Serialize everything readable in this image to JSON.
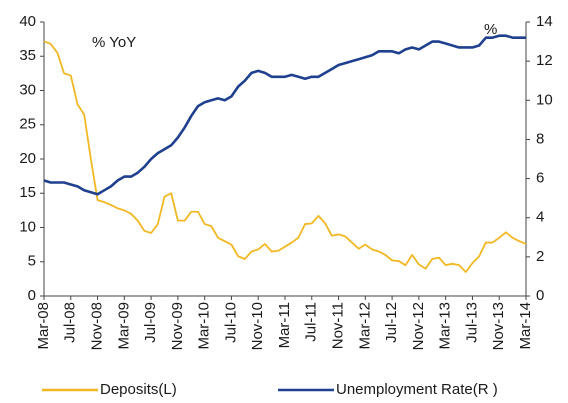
{
  "chart_data": {
    "type": "line",
    "annotations": [
      "% YoY",
      "%"
    ],
    "categories": [
      "Mar-08",
      null,
      null,
      null,
      "Jul-08",
      null,
      null,
      null,
      "Nov-08",
      null,
      null,
      null,
      "Mar-09",
      null,
      null,
      null,
      "Jul-09",
      null,
      null,
      null,
      "Nov-09",
      null,
      null,
      null,
      "Mar-10",
      null,
      null,
      null,
      "Jul-10",
      null,
      null,
      null,
      "Nov-10",
      null,
      null,
      null,
      "Mar-11",
      null,
      null,
      null,
      "Jul-11",
      null,
      null,
      null,
      "Nov-11",
      null,
      null,
      null,
      "Mar-12",
      null,
      null,
      null,
      "Jul-12",
      null,
      null,
      null,
      "Nov-12",
      null,
      null,
      null,
      "Mar-13",
      null,
      null,
      null,
      "Jul-13",
      null,
      null,
      null,
      "Nov-13",
      null,
      null,
      null,
      "Mar-14"
    ],
    "series": [
      {
        "name": "Deposits(L)",
        "color": "#f2b824",
        "axis": "y",
        "values": [
          37.2,
          36.8,
          35.5,
          32.5,
          32.2,
          28,
          26.5,
          20,
          14,
          13.7,
          13.3,
          12.8,
          12.5,
          12,
          11,
          9.5,
          9.2,
          10.5,
          14.5,
          15,
          11,
          11,
          12.3,
          12.3,
          10.5,
          10.2,
          8.5,
          8,
          7.5,
          5.8,
          5.4,
          6.5,
          6.8,
          7.6,
          6.5,
          6.6,
          7.2,
          7.8,
          8.5,
          10.5,
          10.6,
          11.7,
          10.6,
          8.8,
          9,
          8.7,
          7.8,
          6.9,
          7.5,
          6.8,
          6.5,
          6,
          5.2,
          5.1,
          4.5,
          6,
          4.6,
          4,
          5.4,
          5.6,
          4.5,
          4.7,
          4.5,
          3.5,
          4.8,
          5.8,
          7.8,
          7.8,
          8.5,
          9.3,
          8.5,
          8,
          7.6
        ]
      },
      {
        "name": "Unemployment Rate(R )",
        "color": "#1f3f8f",
        "axis": "y2",
        "values": [
          5.9,
          5.8,
          5.8,
          5.8,
          5.7,
          5.6,
          5.4,
          5.3,
          5.2,
          5.4,
          5.6,
          5.9,
          6.1,
          6.1,
          6.3,
          6.6,
          7.0,
          7.3,
          7.5,
          7.7,
          8.1,
          8.6,
          9.2,
          9.7,
          9.9,
          10.0,
          10.1,
          10.0,
          10.2,
          10.7,
          11.0,
          11.4,
          11.5,
          11.4,
          11.2,
          11.2,
          11.2,
          11.3,
          11.2,
          11.1,
          11.2,
          11.2,
          11.4,
          11.6,
          11.8,
          11.9,
          12.0,
          12.1,
          12.2,
          12.3,
          12.5,
          12.5,
          12.5,
          12.4,
          12.6,
          12.7,
          12.6,
          12.8,
          13.0,
          13.0,
          12.9,
          12.8,
          12.7,
          12.7,
          12.7,
          12.8,
          13.2,
          13.2,
          13.3,
          13.3,
          13.2,
          13.2,
          13.2
        ]
      }
    ],
    "ylim": [
      0,
      40
    ],
    "yticks": [
      0,
      5,
      10,
      15,
      20,
      25,
      30,
      35,
      40
    ],
    "y2lim": [
      0,
      14
    ],
    "y2ticks": [
      0,
      2,
      4,
      6,
      8,
      10,
      12,
      14
    ],
    "grid": false,
    "legend": "bottom"
  }
}
